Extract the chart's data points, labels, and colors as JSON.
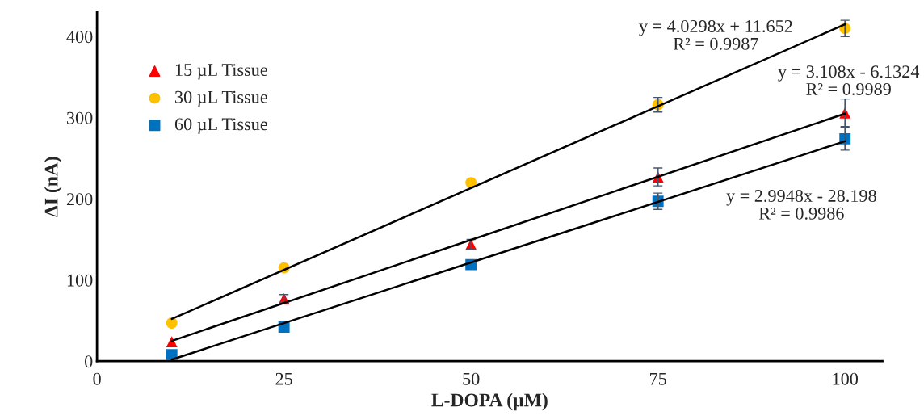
{
  "chart_data": {
    "type": "scatter",
    "xlabel": "L-DOPA (µM)",
    "ylabel": "ΔI (nA)",
    "xlim": [
      0,
      105
    ],
    "ylim": [
      0,
      430
    ],
    "xticks": [
      0,
      25,
      50,
      75,
      100
    ],
    "yticks": [
      0,
      100,
      200,
      300,
      400
    ],
    "grid": false,
    "legend": "top left",
    "series": [
      {
        "name": "15 µL Tissue",
        "marker": "triangle",
        "color": "#ff0000",
        "x": [
          10,
          25,
          50,
          75,
          100
        ],
        "values": [
          24,
          77,
          144,
          227,
          306
        ],
        "errors": [
          null,
          5,
          6,
          11,
          17
        ]
      },
      {
        "name": "30 µL Tissue",
        "marker": "circle",
        "color": "#ffc000",
        "x": [
          10,
          25,
          50,
          75,
          100
        ],
        "values": [
          47,
          115,
          220,
          316,
          410
        ],
        "errors": [
          null,
          null,
          null,
          9,
          10
        ]
      },
      {
        "name": "60 µL Tissue",
        "marker": "square",
        "color": "#0070c0",
        "x": [
          10,
          25,
          50,
          75,
          100
        ],
        "values": [
          8,
          42,
          119,
          197,
          274
        ],
        "errors": [
          null,
          null,
          null,
          10,
          14
        ]
      },
      {
        "type": "line",
        "color": "#000000",
        "x": [
          10,
          100
        ],
        "values": [
          25,
          305
        ]
      },
      {
        "type": "line",
        "color": "#000000",
        "x": [
          10,
          100
        ],
        "values": [
          52,
          415
        ]
      },
      {
        "type": "line",
        "color": "#000000",
        "x": [
          10,
          100
        ],
        "values": [
          2,
          271
        ]
      }
    ],
    "annotations": [
      "y = 4.0298x + 11.652\nR² = 0.9987",
      "y = 3.108x - 6.1324\nR² = 0.9989",
      "y = 2.9948x - 28.198\nR² = 0.9986"
    ]
  }
}
